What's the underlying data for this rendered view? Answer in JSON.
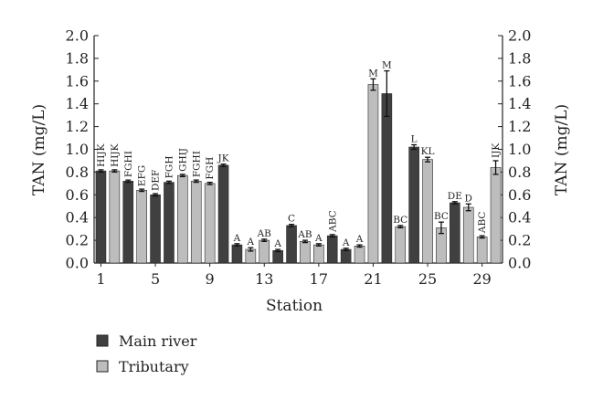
{
  "chart_data": {
    "type": "bar",
    "xlabel": "Station",
    "ylabel_left": "TAN (mg/L)",
    "ylabel_right": "TAN (mg/L)",
    "ylim": [
      0,
      2.0
    ],
    "yticks": [
      "0.0",
      "0.2",
      "0.4",
      "0.6",
      "0.8",
      "1.0",
      "1.2",
      "1.4",
      "1.6",
      "1.8",
      "2.0"
    ],
    "xticks": [
      "1",
      "5",
      "9",
      "13",
      "17",
      "21",
      "25",
      "29"
    ],
    "legend_position": "bottom-left",
    "series": [
      {
        "name": "Main river",
        "color": "#404040"
      },
      {
        "name": "Tributary",
        "color": "#bdbdbd"
      }
    ],
    "stations": [
      {
        "station": 1,
        "type": "Main river",
        "value": 0.81,
        "error": 0.01,
        "sig": "HIJK"
      },
      {
        "station": 2,
        "type": "Tributary",
        "value": 0.81,
        "error": 0.01,
        "sig": "HIJK"
      },
      {
        "station": 3,
        "type": "Main river",
        "value": 0.72,
        "error": 0.01,
        "sig": "FGHI"
      },
      {
        "station": 4,
        "type": "Tributary",
        "value": 0.64,
        "error": 0.01,
        "sig": "EFG"
      },
      {
        "station": 5,
        "type": "Main river",
        "value": 0.6,
        "error": 0.01,
        "sig": "DEF"
      },
      {
        "station": 6,
        "type": "Main river",
        "value": 0.71,
        "error": 0.01,
        "sig": "FGH"
      },
      {
        "station": 7,
        "type": "Tributary",
        "value": 0.77,
        "error": 0.01,
        "sig": "GHIJ"
      },
      {
        "station": 8,
        "type": "Tributary",
        "value": 0.72,
        "error": 0.01,
        "sig": "FGHI"
      },
      {
        "station": 9,
        "type": "Tributary",
        "value": 0.7,
        "error": 0.01,
        "sig": "FGH"
      },
      {
        "station": 10,
        "type": "Main river",
        "value": 0.86,
        "error": 0.01,
        "sig": "JK"
      },
      {
        "station": 11,
        "type": "Main river",
        "value": 0.16,
        "error": 0.01,
        "sig": "A"
      },
      {
        "station": 12,
        "type": "Tributary",
        "value": 0.12,
        "error": 0.015,
        "sig": "A"
      },
      {
        "station": 13,
        "type": "Tributary",
        "value": 0.2,
        "error": 0.01,
        "sig": "AB"
      },
      {
        "station": 14,
        "type": "Main river",
        "value": 0.11,
        "error": 0.01,
        "sig": "A"
      },
      {
        "station": 15,
        "type": "Main river",
        "value": 0.33,
        "error": 0.01,
        "sig": "C"
      },
      {
        "station": 16,
        "type": "Tributary",
        "value": 0.19,
        "error": 0.01,
        "sig": "AB"
      },
      {
        "station": 17,
        "type": "Tributary",
        "value": 0.16,
        "error": 0.01,
        "sig": "A"
      },
      {
        "station": 18,
        "type": "Main river",
        "value": 0.24,
        "error": 0.01,
        "sig": "ABC"
      },
      {
        "station": 19,
        "type": "Main river",
        "value": 0.12,
        "error": 0.01,
        "sig": "A"
      },
      {
        "station": 20,
        "type": "Tributary",
        "value": 0.15,
        "error": 0.01,
        "sig": "A"
      },
      {
        "station": 21,
        "type": "Tributary",
        "value": 1.57,
        "error": 0.05,
        "sig": "M"
      },
      {
        "station": 22,
        "type": "Main river",
        "value": 1.49,
        "error": 0.2,
        "sig": "M"
      },
      {
        "station": 23,
        "type": "Tributary",
        "value": 0.32,
        "error": 0.01,
        "sig": "BC"
      },
      {
        "station": 24,
        "type": "Main river",
        "value": 1.02,
        "error": 0.02,
        "sig": "L"
      },
      {
        "station": 25,
        "type": "Tributary",
        "value": 0.91,
        "error": 0.02,
        "sig": "KL"
      },
      {
        "station": 26,
        "type": "Tributary",
        "value": 0.31,
        "error": 0.05,
        "sig": "BC"
      },
      {
        "station": 27,
        "type": "Main river",
        "value": 0.53,
        "error": 0.01,
        "sig": "DE"
      },
      {
        "station": 28,
        "type": "Tributary",
        "value": 0.49,
        "error": 0.03,
        "sig": "D"
      },
      {
        "station": 29,
        "type": "Tributary",
        "value": 0.23,
        "error": 0.01,
        "sig": "ABC"
      },
      {
        "station": 30,
        "type": "Tributary",
        "value": 0.84,
        "error": 0.06,
        "sig": "IJK"
      }
    ]
  }
}
